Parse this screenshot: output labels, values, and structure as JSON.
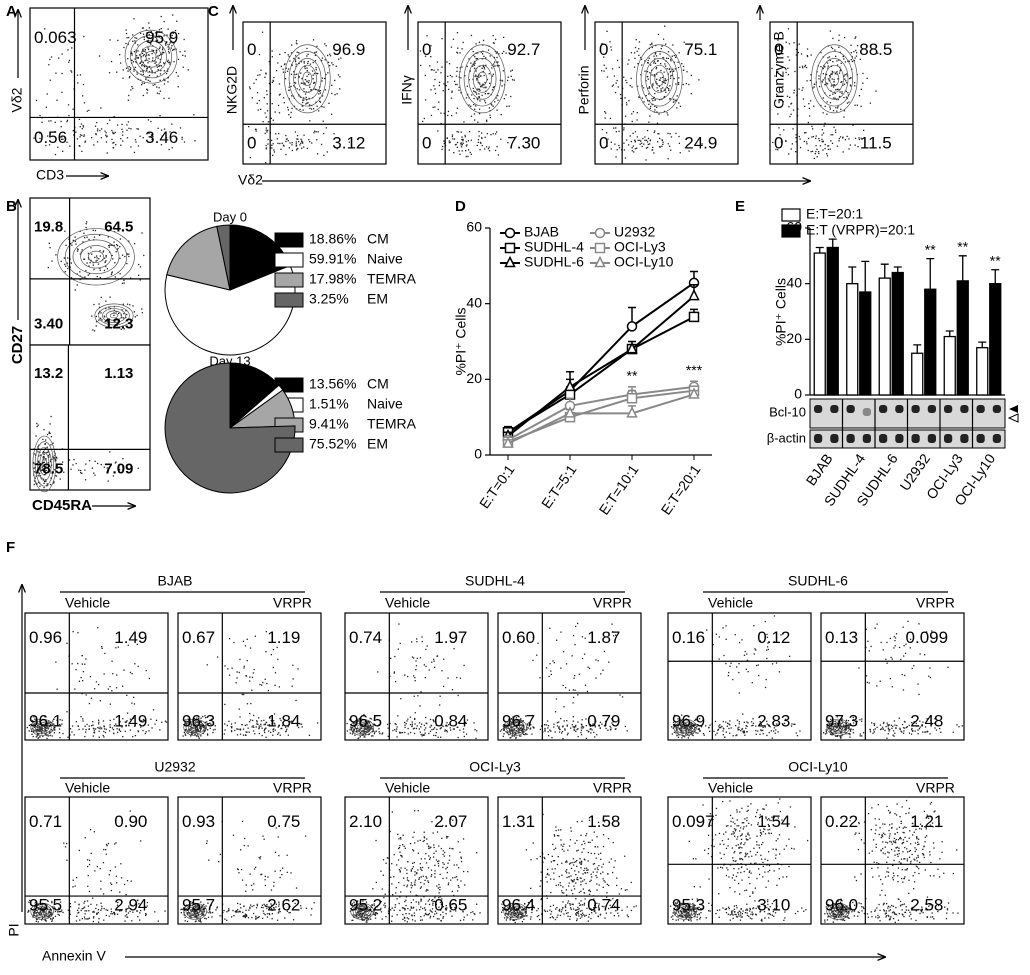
{
  "figure": {
    "panel_a": {
      "label": "A",
      "x_label": "CD3",
      "y_label": "Vδ2",
      "quadrants": [
        "0.063",
        "95.9",
        "0.56",
        "3.46"
      ]
    },
    "panel_c": {
      "label": "C",
      "x_label": "Vδ2",
      "plots": [
        {
          "y_label": "NKG2D",
          "quadrants": [
            "0",
            "96.9",
            "0",
            "3.12"
          ]
        },
        {
          "y_label": "IFNγ",
          "quadrants": [
            "0",
            "92.7",
            "0",
            "7.30"
          ]
        },
        {
          "y_label": "Perforin",
          "quadrants": [
            "0",
            "75.1",
            "0",
            "24.9"
          ]
        },
        {
          "y_label": "Granzyme B",
          "quadrants": [
            "0",
            "88.5",
            "0",
            "11.5"
          ]
        }
      ]
    },
    "panel_b": {
      "label": "B",
      "x_label": "CD45RA",
      "y_label": "CD27",
      "plots": [
        {
          "quadrants": [
            "19.8",
            "64.5",
            "3.40",
            "12.3"
          ]
        },
        {
          "quadrants": [
            "13.2",
            "1.13",
            "78.5",
            "7.09"
          ]
        }
      ]
    },
    "panel_d": {
      "label": "D"
    },
    "panel_e": {
      "label": "E",
      "blot_labels": [
        "Bcl-10",
        "β-actin"
      ]
    },
    "panel_f": {
      "label": "F",
      "x_label": "Annexin V",
      "y_label": "PI",
      "groups": [
        {
          "name": "BJAB",
          "plots": [
            {
              "condition": "Vehicle",
              "quadrants": [
                "0.96",
                "1.49",
                "96.1",
                "1.49"
              ]
            },
            {
              "condition": "VRPR",
              "quadrants": [
                "0.67",
                "1.19",
                "96.3",
                "1.84"
              ]
            }
          ]
        },
        {
          "name": "SUDHL-4",
          "plots": [
            {
              "condition": "Vehicle",
              "quadrants": [
                "0.74",
                "1.97",
                "96.5",
                "0.84"
              ]
            },
            {
              "condition": "VRPR",
              "quadrants": [
                "0.60",
                "1.87",
                "96.7",
                "0.79"
              ]
            }
          ]
        },
        {
          "name": "SUDHL-6",
          "plots": [
            {
              "condition": "Vehicle",
              "quadrants": [
                "0.16",
                "0.12",
                "96.9",
                "2.83"
              ]
            },
            {
              "condition": "VRPR",
              "quadrants": [
                "0.13",
                "0.099",
                "97.3",
                "2.48"
              ]
            }
          ]
        },
        {
          "name": "U2932",
          "plots": [
            {
              "condition": "Vehicle",
              "quadrants": [
                "0.71",
                "0.90",
                "95.5",
                "2.94"
              ]
            },
            {
              "condition": "VRPR",
              "quadrants": [
                "0.93",
                "0.75",
                "95.7",
                "2.62"
              ]
            }
          ]
        },
        {
          "name": "OCI-Ly3",
          "plots": [
            {
              "condition": "Vehicle",
              "quadrants": [
                "2.10",
                "2.07",
                "95.2",
                "0.65"
              ]
            },
            {
              "condition": "VRPR",
              "quadrants": [
                "1.31",
                "1.58",
                "96.4",
                "0.74"
              ]
            }
          ]
        },
        {
          "name": "OCI-Ly10",
          "plots": [
            {
              "condition": "Vehicle",
              "quadrants": [
                "0.097",
                "1.54",
                "95.3",
                "3.10"
              ]
            },
            {
              "condition": "VRPR",
              "quadrants": [
                "0.22",
                "1.21",
                "96.0",
                "2.58"
              ]
            }
          ]
        }
      ]
    }
  },
  "chart_data": [
    {
      "type": "pie",
      "title": "Day 0",
      "categories": [
        "CM",
        "Naive",
        "TEMRA",
        "EM"
      ],
      "values": [
        18.86,
        59.91,
        17.98,
        3.25
      ],
      "value_labels": [
        "18.86%",
        "59.91%",
        "17.98%",
        "3.25%"
      ],
      "colors": [
        "#000000",
        "#ffffff",
        "#a6a6a6",
        "#666666"
      ]
    },
    {
      "type": "pie",
      "title": "Day 13",
      "categories": [
        "CM",
        "Naive",
        "TEMRA",
        "EM"
      ],
      "values": [
        13.56,
        1.51,
        9.41,
        75.52
      ],
      "value_labels": [
        "13.56%",
        "1.51%",
        "9.41%",
        "75.52%"
      ],
      "colors": [
        "#000000",
        "#ffffff",
        "#a6a6a6",
        "#666666"
      ]
    },
    {
      "type": "line",
      "y_label": "%PI⁺ Cells",
      "categories": [
        "E:T=0:1",
        "E:T=5:1",
        "E:T=10:1",
        "E:T=20:1"
      ],
      "ylim": [
        0,
        60
      ],
      "yticks": [
        0,
        20,
        40,
        60
      ],
      "series": [
        {
          "name": "BJAB",
          "color": "#000000",
          "marker": "circle",
          "values": [
            6,
            17,
            34,
            45.5
          ],
          "errors": [
            1.5,
            3,
            5,
            3
          ]
        },
        {
          "name": "SUDHL-4",
          "color": "#000000",
          "marker": "square",
          "values": [
            6,
            16,
            28,
            36.5
          ],
          "errors": [
            1,
            2,
            1,
            2
          ]
        },
        {
          "name": "SUDHL-6",
          "color": "#000000",
          "marker": "triangle",
          "values": [
            5,
            18,
            28,
            42
          ],
          "errors": [
            1,
            4,
            2,
            3
          ]
        },
        {
          "name": "U2932",
          "color": "#888888",
          "marker": "circle",
          "values": [
            4,
            13,
            16,
            18
          ],
          "errors": [
            1,
            2,
            2,
            1.5
          ]
        },
        {
          "name": "OCI-Ly3",
          "color": "#888888",
          "marker": "square",
          "values": [
            3.5,
            10,
            15,
            17
          ],
          "errors": [
            1,
            1,
            2,
            1
          ]
        },
        {
          "name": "OCI-Ly10",
          "color": "#888888",
          "marker": "triangle",
          "values": [
            3,
            11,
            11,
            16
          ],
          "errors": [
            1,
            1,
            2,
            1
          ]
        }
      ],
      "annotations": [
        "**",
        "***"
      ]
    },
    {
      "type": "bar",
      "y_label": "%PI⁺ Cells",
      "categories": [
        "BJAB",
        "SUDHL-4",
        "SUDHL-6",
        "U2932",
        "OCI-Ly3",
        "OCI-Ly10"
      ],
      "ylim": [
        0,
        60
      ],
      "yticks": [
        0,
        20,
        40,
        60
      ],
      "series": [
        {
          "name": "E:T=20:1",
          "color": "#ffffff",
          "values": [
            51,
            40,
            42,
            15,
            21,
            17
          ],
          "errors": [
            2,
            6,
            5,
            3,
            2,
            2
          ]
        },
        {
          "name": "E:T (VRPR)=20:1",
          "color": "#000000",
          "values": [
            53,
            37,
            44,
            38,
            41,
            40
          ],
          "errors": [
            3,
            11,
            2,
            11,
            9,
            5
          ]
        }
      ],
      "annotations": [
        "**",
        "**",
        "**"
      ]
    }
  ]
}
